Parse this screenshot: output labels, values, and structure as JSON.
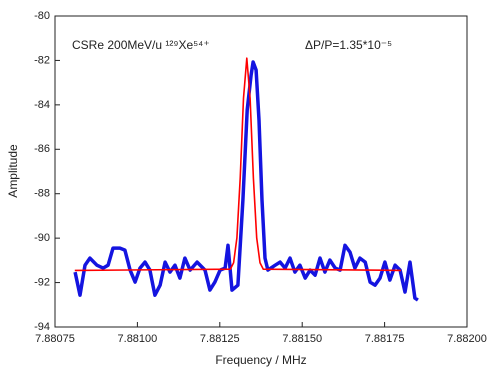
{
  "chart_data": {
    "type": "line",
    "xlabel": "Frequency / MHz",
    "ylabel": "Amplitude",
    "annotations": [
      "CSRe 200MeV/u ¹²⁹Xe⁵⁴⁺",
      "ΔP/P=1.35*10⁻⁵"
    ],
    "xlim": [
      7.88075,
      7.882
    ],
    "xticks": [
      7.88075,
      {
        "value": 7.881,
        "label": "7.88100"
      },
      7.88125,
      {
        "value": 7.8815,
        "label": "7.88150"
      },
      7.88175,
      {
        "value": 7.882,
        "label": "7.88200"
      }
    ],
    "ylim": [
      -94,
      -80
    ],
    "yticks": [
      -94,
      -92,
      -90,
      -88,
      -86,
      -84,
      -82,
      -80
    ],
    "series": [
      {
        "color": "#1414e0",
        "x": [
          7.880811,
          7.880826,
          7.880841,
          7.880856,
          7.880877,
          7.880896,
          7.880911,
          7.880926,
          7.880947,
          7.880962,
          7.880978,
          7.880993,
          7.881008,
          7.881023,
          7.881038,
          7.881053,
          7.881069,
          7.881084,
          7.881099,
          7.881114,
          7.881129,
          7.881144,
          7.88116,
          7.881181,
          7.881205,
          7.88122,
          7.881235,
          7.881251,
          7.881266,
          7.881275,
          7.881287,
          7.881305,
          7.88132,
          7.881333,
          7.881345,
          7.881351,
          7.88136,
          7.881369,
          7.881378,
          7.881387,
          7.881396,
          7.881418,
          7.881433,
          7.881448,
          7.881463,
          7.881478,
          7.881493,
          7.881509,
          7.881524,
          7.881539,
          7.881554,
          7.881569,
          7.881584,
          7.8816,
          7.881615,
          7.88163,
          7.881645,
          7.88166,
          7.881675,
          7.881691,
          7.881706,
          7.881721,
          7.881736,
          7.881751,
          7.881766,
          7.881782,
          7.881797,
          7.881812,
          7.881827,
          7.881842,
          7.881851
        ],
        "values": [
          -91.53,
          -92.57,
          -91.22,
          -90.9,
          -91.22,
          -91.35,
          -91.22,
          -90.45,
          -90.45,
          -90.54,
          -91.44,
          -91.98,
          -91.35,
          -91.08,
          -91.44,
          -92.57,
          -92.12,
          -91.08,
          -91.53,
          -91.22,
          -91.8,
          -90.9,
          -91.44,
          -91.08,
          -91.44,
          -92.34,
          -91.98,
          -91.44,
          -91.35,
          -90.32,
          -92.34,
          -92.12,
          -88.29,
          -84.23,
          -82.66,
          -82.07,
          -82.43,
          -84.68,
          -88.29,
          -90.9,
          -91.44,
          -91.22,
          -91.08,
          -91.35,
          -90.9,
          -91.53,
          -91.22,
          -91.8,
          -91.44,
          -91.67,
          -90.9,
          -91.53,
          -90.99,
          -91.35,
          -91.44,
          -90.32,
          -90.63,
          -91.35,
          -90.9,
          -91.08,
          -91.98,
          -92.12,
          -91.8,
          -91.08,
          -91.89,
          -91.22,
          -91.44,
          -92.43,
          -91.08,
          -92.7,
          -92.79
        ]
      },
      {
        "color": "#ff0000",
        "x": [
          7.88081,
          7.881282,
          7.881292,
          7.881302,
          7.881312,
          7.881322,
          7.881332,
          7.881342,
          7.881352,
          7.881362,
          7.881372,
          7.881382,
          7.8818
        ],
        "values": [
          -91.45,
          -91.4,
          -91.11,
          -89.99,
          -87.3,
          -83.7,
          -81.9,
          -83.7,
          -87.3,
          -89.99,
          -91.11,
          -91.4,
          -91.45
        ]
      }
    ]
  }
}
